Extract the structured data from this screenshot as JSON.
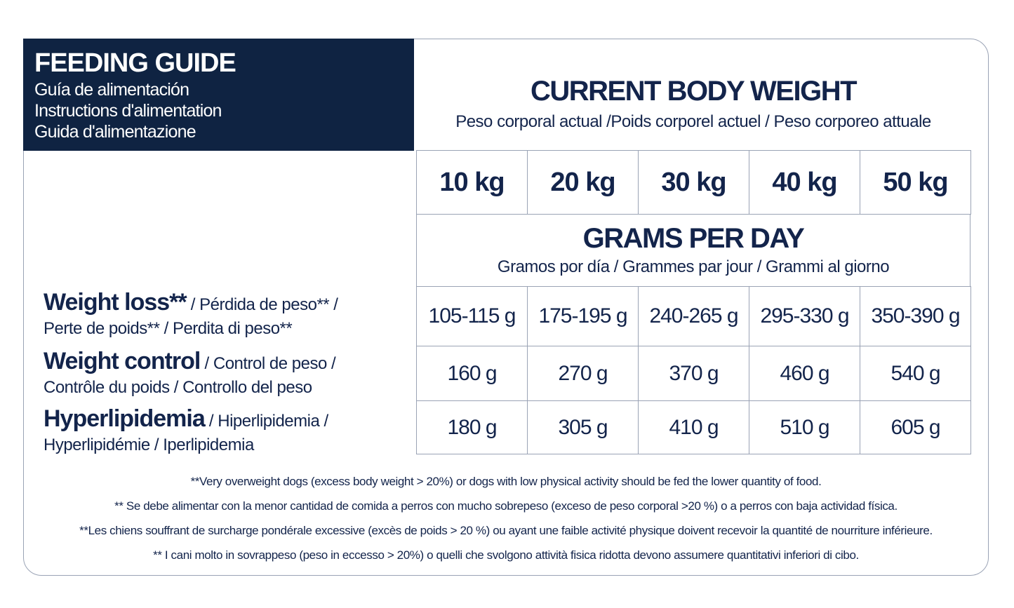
{
  "header": {
    "title": "FEEDING GUIDE",
    "subtitles": [
      "Guía de alimentación",
      "Instructions d'alimentation",
      "Guida d'alimentazione"
    ]
  },
  "weight_header": {
    "title": "CURRENT BODY WEIGHT",
    "subtitle": "Peso corporal actual /Poids corporel actuel / Peso corporeo attuale"
  },
  "weights": [
    "10 kg",
    "20 kg",
    "30 kg",
    "40 kg",
    "50 kg"
  ],
  "grams_header": {
    "title": "GRAMS PER DAY",
    "subtitle": "Gramos por día / Grammes par jour / Grammi al giorno"
  },
  "rows": [
    {
      "label": "Weight loss**",
      "label_rest1": " / Pérdida de peso** /",
      "label_rest2": "Perte de poids** / Perdita di peso**",
      "values": [
        "105-115 g",
        "175-195 g",
        "240-265 g",
        "295-330 g",
        "350-390 g"
      ]
    },
    {
      "label": "Weight control",
      "label_rest1": " / Control de peso /",
      "label_rest2": "Contrôle du poids / Controllo del peso",
      "values": [
        "160 g",
        "270 g",
        "370 g",
        "460 g",
        "540 g"
      ]
    },
    {
      "label": "Hyperlipidemia",
      "label_rest1": " / Hiperlipidemia /",
      "label_rest2": "Hyperlipidémie / Iperlipidemia",
      "values": [
        "180 g",
        "305 g",
        "410 g",
        "510 g",
        "605 g"
      ]
    }
  ],
  "footnotes": [
    "**Very overweight dogs (excess body weight > 20%) or dogs with low physical activity should be fed the lower quantity of food.",
    "** Se debe alimentar con la menor cantidad de comida a perros con mucho sobrepeso (exceso de peso corporal >20 %) o a perros con baja actividad física.",
    "**Les chiens souffrant de surcharge pondérale excessive (excès de poids > 20 %) ou ayant une faible activité physique doivent recevoir la quantité de nourriture inférieure.",
    "** I cani molto in sovrappeso (peso in eccesso > 20%) o quelli che svolgono attività fisica ridotta devono assumere quantitativi inferiori di cibo."
  ],
  "colors": {
    "navy": "#0f2342",
    "text": "#13244b",
    "border": "#9aa3b5"
  }
}
